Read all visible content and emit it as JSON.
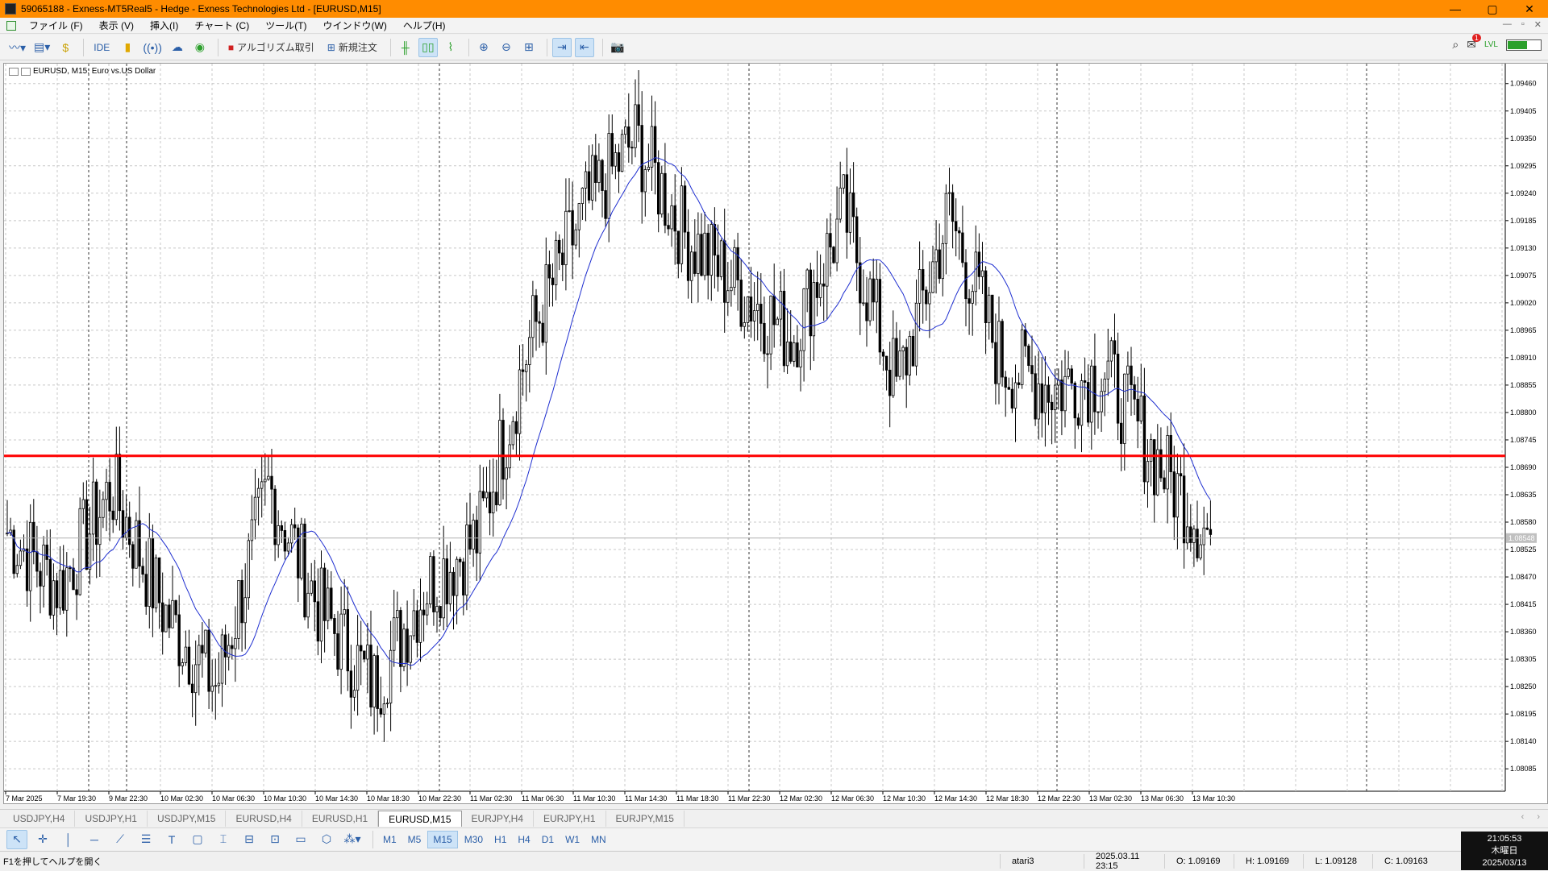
{
  "window": {
    "title": "59065188 - Exness-MT5Real5 - Hedge - Exness Technologies Ltd - [EURUSD,M15]",
    "controls": [
      "—",
      "▢",
      "✕"
    ]
  },
  "menu": {
    "items": [
      "ファイル (F)",
      "表示 (V)",
      "挿入(I)",
      "チャート (C)",
      "ツール(T)",
      "ウインドウ(W)",
      "ヘルプ(H)"
    ],
    "right": [
      "—",
      "▫",
      "✕"
    ]
  },
  "toolbar": {
    "ide_label": "IDE",
    "algo_label": "アルゴリズム取引",
    "new_order_label": "新規注文",
    "notification_count": "1",
    "signal_label": "LVL"
  },
  "chart": {
    "title": "EURUSD, M15:  Euro vs.US Dollar",
    "price_labels": [
      "1.09460",
      "1.09405",
      "1.09350",
      "1.09295",
      "1.09240",
      "1.09185",
      "1.09130",
      "1.09075",
      "1.09020",
      "1.08965",
      "1.08910",
      "1.08855",
      "1.08800",
      "1.08745",
      "1.08690",
      "1.08635",
      "1.08580",
      "1.08525",
      "1.08470",
      "1.08415",
      "1.08360",
      "1.08305",
      "1.08250",
      "1.08195",
      "1.08140",
      "1.08085"
    ],
    "current_price": "1.08548",
    "time_labels": [
      "7 Mar 2025",
      "7 Mar 19:30",
      "9 Mar 22:30",
      "10 Mar 02:30",
      "10 Mar 06:30",
      "10 Mar 10:30",
      "10 Mar 14:30",
      "10 Mar 18:30",
      "10 Mar 22:30",
      "11 Mar 02:30",
      "11 Mar 06:30",
      "11 Mar 10:30",
      "11 Mar 14:30",
      "11 Mar 18:30",
      "11 Mar 22:30",
      "12 Mar 02:30",
      "12 Mar 06:30",
      "12 Mar 10:30",
      "12 Mar 14:30",
      "12 Mar 18:30",
      "12 Mar 22:30",
      "13 Mar 02:30",
      "13 Mar 06:30",
      "13 Mar 10:30"
    ],
    "horizontal_line_price": 1.08713,
    "colors": {
      "candles": "#000000",
      "ma": "#1f2fd0",
      "hline": "#ff0000",
      "grid": "#c8c8c8"
    }
  },
  "chart_data": {
    "type": "line",
    "symbol": "EURUSD",
    "timeframe": "M15",
    "title": "EURUSD, M15:  Euro vs.US Dollar",
    "ylim": [
      1.0804,
      1.095
    ],
    "x": [
      "7 Mar 2025",
      "7 Mar 19:30",
      "9 Mar 22:30",
      "10 Mar 02:30",
      "10 Mar 06:30",
      "10 Mar 10:30",
      "10 Mar 14:30",
      "10 Mar 18:30",
      "10 Mar 22:30",
      "11 Mar 02:30",
      "11 Mar 06:30",
      "11 Mar 10:30",
      "11 Mar 14:30",
      "11 Mar 18:30",
      "11 Mar 22:30",
      "12 Mar 02:30",
      "12 Mar 06:30",
      "12 Mar 10:30",
      "12 Mar 14:30",
      "12 Mar 18:30",
      "12 Mar 22:30",
      "13 Mar 02:30",
      "13 Mar 06:30",
      "13 Mar 10:30"
    ],
    "series": [
      {
        "name": "EURUSD",
        "values": [
          1.0856,
          1.0845,
          1.0865,
          1.084,
          1.0825,
          1.0865,
          1.084,
          1.0825,
          1.0845,
          1.0855,
          1.0895,
          1.092,
          1.0935,
          1.0915,
          1.0905,
          1.0895,
          1.092,
          1.0885,
          1.092,
          1.089,
          1.0885,
          1.0888,
          1.087,
          1.0855
        ]
      }
    ]
  },
  "tabs": [
    "USDJPY,H4",
    "USDJPY,H1",
    "USDJPY,M15",
    "EURUSD,H4",
    "EURUSD,H1",
    "EURUSD,M15",
    "EURJPY,H4",
    "EURJPY,H1",
    "EURJPY,M15"
  ],
  "active_tab": "EURUSD,M15",
  "timeframes": [
    "M1",
    "M5",
    "M15",
    "M30",
    "H1",
    "H4",
    "D1",
    "W1",
    "MN"
  ],
  "active_timeframe": "M15",
  "status": {
    "help": "F1を押してヘルプを開く",
    "profile": "atari3",
    "datetime": "2025.03.11 23:15",
    "open": "O: 1.09169",
    "high": "H: 1.09169",
    "low": "L: 1.09128",
    "close": "C: 1.09163"
  },
  "clock": {
    "time": "21:05:53",
    "day": "木曜日",
    "date": "2025/03/13"
  }
}
